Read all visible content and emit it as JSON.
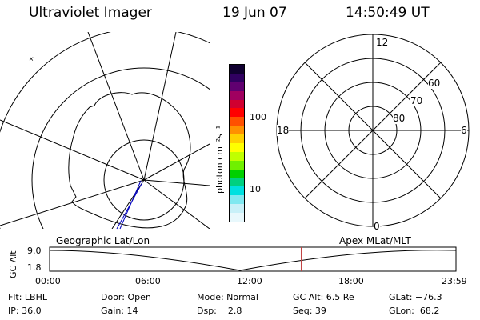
{
  "header": {
    "instrument": "Ultraviolet Imager",
    "date": "19 Jun 07",
    "time": "14:50:49 UT"
  },
  "colorbar": {
    "unit_label": "photon cm⁻²s⁻¹",
    "tick_labels": [
      "100",
      "10"
    ],
    "colors": [
      "#100030",
      "#300060",
      "#600070",
      "#a00060",
      "#d00030",
      "#ff0000",
      "#ff5000",
      "#ff9000",
      "#ffd000",
      "#ffff00",
      "#c0ff00",
      "#70f000",
      "#00d000",
      "#00d080",
      "#00e0e0",
      "#80e8f0",
      "#c8f0f8",
      "#e8f8fc"
    ]
  },
  "polar_grid": {
    "hour_labels": [
      "12",
      "18",
      "6",
      "0"
    ],
    "lat_labels": [
      "60",
      "70",
      "80"
    ]
  },
  "timeline": {
    "left_title": "Geographic Lat/Lon",
    "right_title": "Apex MLat/MLT",
    "y_axis_label": "GC Alt",
    "y_ticks": [
      "9.0",
      "1.8"
    ],
    "x_ticks": [
      "00:00",
      "06:00",
      "12:00",
      "18:00",
      "23:59"
    ],
    "marker_time": "14:50:49",
    "marker_color": "#c04040"
  },
  "info": {
    "row1": [
      "Flt: LBHL",
      "Door: Open",
      "Mode: Normal",
      "GC Alt: 6.5 Re",
      "GLat: −76.3"
    ],
    "row2": [
      "IP: 36.0",
      "Gain: 14",
      "Dsp:    2.8",
      "Seq: 39",
      "GLon:  68.2"
    ]
  }
}
